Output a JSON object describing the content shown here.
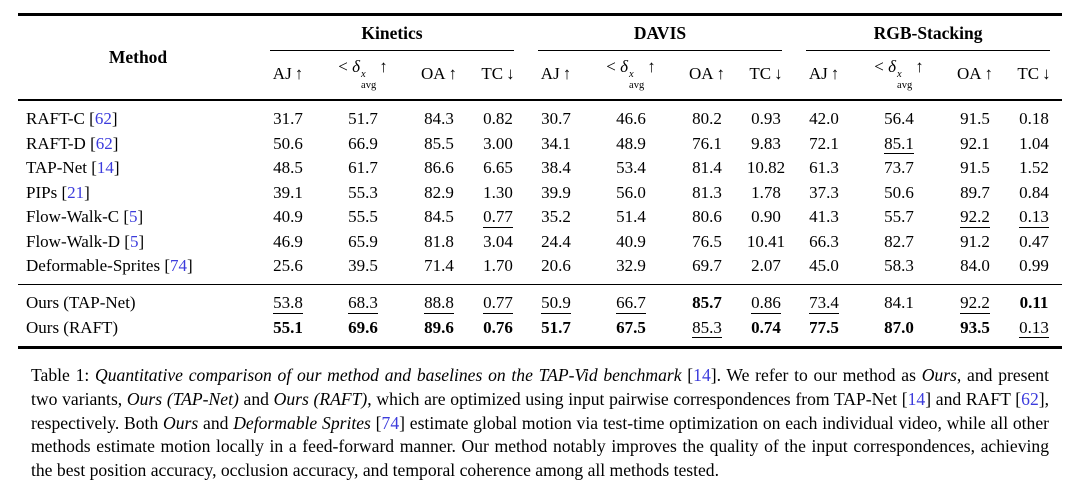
{
  "colors": {
    "citation": "#3b3bdc",
    "rule": "#000000",
    "background": "#ffffff"
  },
  "table": {
    "method_header": "Method",
    "groups": [
      {
        "label": "Kinetics"
      },
      {
        "label": "DAVIS"
      },
      {
        "label": "RGB-Stacking"
      }
    ],
    "metric_headers": [
      {
        "kind": "plain",
        "label": "AJ",
        "arrow": "↑"
      },
      {
        "kind": "delta",
        "prefix": "<",
        "symbol": "δ",
        "sup": "x",
        "sub": "avg",
        "arrow": "↑"
      },
      {
        "kind": "plain",
        "label": "OA",
        "arrow": "↑"
      },
      {
        "kind": "plain",
        "label": "TC",
        "arrow": "↓"
      }
    ],
    "rows": [
      {
        "method": "RAFT-C",
        "cite": "62",
        "cells": [
          [
            "31.7",
            "p"
          ],
          [
            "51.7",
            "p"
          ],
          [
            "84.3",
            "p"
          ],
          [
            "0.82",
            "p"
          ],
          [
            "30.7",
            "p"
          ],
          [
            "46.6",
            "p"
          ],
          [
            "80.2",
            "p"
          ],
          [
            "0.93",
            "p"
          ],
          [
            "42.0",
            "p"
          ],
          [
            "56.4",
            "p"
          ],
          [
            "91.5",
            "p"
          ],
          [
            "0.18",
            "p"
          ]
        ]
      },
      {
        "method": "RAFT-D",
        "cite": "62",
        "cells": [
          [
            "50.6",
            "p"
          ],
          [
            "66.9",
            "p"
          ],
          [
            "85.5",
            "p"
          ],
          [
            "3.00",
            "p"
          ],
          [
            "34.1",
            "p"
          ],
          [
            "48.9",
            "p"
          ],
          [
            "76.1",
            "p"
          ],
          [
            "9.83",
            "p"
          ],
          [
            "72.1",
            "p"
          ],
          [
            "85.1",
            "u"
          ],
          [
            "92.1",
            "p"
          ],
          [
            "1.04",
            "p"
          ]
        ]
      },
      {
        "method": "TAP-Net",
        "cite": "14",
        "cells": [
          [
            "48.5",
            "p"
          ],
          [
            "61.7",
            "p"
          ],
          [
            "86.6",
            "p"
          ],
          [
            "6.65",
            "p"
          ],
          [
            "38.4",
            "p"
          ],
          [
            "53.4",
            "p"
          ],
          [
            "81.4",
            "p"
          ],
          [
            "10.82",
            "p"
          ],
          [
            "61.3",
            "p"
          ],
          [
            "73.7",
            "p"
          ],
          [
            "91.5",
            "p"
          ],
          [
            "1.52",
            "p"
          ]
        ]
      },
      {
        "method": "PIPs",
        "cite": "21",
        "cells": [
          [
            "39.1",
            "p"
          ],
          [
            "55.3",
            "p"
          ],
          [
            "82.9",
            "p"
          ],
          [
            "1.30",
            "p"
          ],
          [
            "39.9",
            "p"
          ],
          [
            "56.0",
            "p"
          ],
          [
            "81.3",
            "p"
          ],
          [
            "1.78",
            "p"
          ],
          [
            "37.3",
            "p"
          ],
          [
            "50.6",
            "p"
          ],
          [
            "89.7",
            "p"
          ],
          [
            "0.84",
            "p"
          ]
        ]
      },
      {
        "method": "Flow-Walk-C",
        "cite": "5",
        "cells": [
          [
            "40.9",
            "p"
          ],
          [
            "55.5",
            "p"
          ],
          [
            "84.5",
            "p"
          ],
          [
            "0.77",
            "u"
          ],
          [
            "35.2",
            "p"
          ],
          [
            "51.4",
            "p"
          ],
          [
            "80.6",
            "p"
          ],
          [
            "0.90",
            "p"
          ],
          [
            "41.3",
            "p"
          ],
          [
            "55.7",
            "p"
          ],
          [
            "92.2",
            "u"
          ],
          [
            "0.13",
            "u"
          ]
        ]
      },
      {
        "method": "Flow-Walk-D",
        "cite": "5",
        "cells": [
          [
            "46.9",
            "p"
          ],
          [
            "65.9",
            "p"
          ],
          [
            "81.8",
            "p"
          ],
          [
            "3.04",
            "p"
          ],
          [
            "24.4",
            "p"
          ],
          [
            "40.9",
            "p"
          ],
          [
            "76.5",
            "p"
          ],
          [
            "10.41",
            "p"
          ],
          [
            "66.3",
            "p"
          ],
          [
            "82.7",
            "p"
          ],
          [
            "91.2",
            "p"
          ],
          [
            "0.47",
            "p"
          ]
        ]
      },
      {
        "method": "Deformable-Sprites",
        "cite": "74",
        "cells": [
          [
            "25.6",
            "p"
          ],
          [
            "39.5",
            "p"
          ],
          [
            "71.4",
            "p"
          ],
          [
            "1.70",
            "p"
          ],
          [
            "20.6",
            "p"
          ],
          [
            "32.9",
            "p"
          ],
          [
            "69.7",
            "p"
          ],
          [
            "2.07",
            "p"
          ],
          [
            "45.0",
            "p"
          ],
          [
            "58.3",
            "p"
          ],
          [
            "84.0",
            "p"
          ],
          [
            "0.99",
            "p"
          ]
        ]
      }
    ],
    "ours_rows": [
      {
        "method": "Ours (TAP-Net)",
        "cite": "",
        "cells": [
          [
            "53.8",
            "u"
          ],
          [
            "68.3",
            "u"
          ],
          [
            "88.8",
            "u"
          ],
          [
            "0.77",
            "u"
          ],
          [
            "50.9",
            "u"
          ],
          [
            "66.7",
            "u"
          ],
          [
            "85.7",
            "b"
          ],
          [
            "0.86",
            "u"
          ],
          [
            "73.4",
            "u"
          ],
          [
            "84.1",
            "p"
          ],
          [
            "92.2",
            "u"
          ],
          [
            "0.11",
            "b"
          ]
        ]
      },
      {
        "method": "Ours (RAFT)",
        "cite": "",
        "cells": [
          [
            "55.1",
            "b"
          ],
          [
            "69.6",
            "b"
          ],
          [
            "89.6",
            "b"
          ],
          [
            "0.76",
            "b"
          ],
          [
            "51.7",
            "b"
          ],
          [
            "67.5",
            "b"
          ],
          [
            "85.3",
            "u"
          ],
          [
            "0.74",
            "b"
          ],
          [
            "77.5",
            "b"
          ],
          [
            "87.0",
            "b"
          ],
          [
            "93.5",
            "b"
          ],
          [
            "0.13",
            "u"
          ]
        ]
      }
    ]
  },
  "caption": {
    "segments": [
      {
        "t": "Table 1: ",
        "style": "plain"
      },
      {
        "t": "Quantitative comparison of our method and baselines on the TAP-Vid benchmark",
        "style": "italic"
      },
      {
        "t": " [",
        "style": "plain"
      },
      {
        "t": "14",
        "style": "cite"
      },
      {
        "t": "]. We refer to our method as ",
        "style": "plain"
      },
      {
        "t": "Ours",
        "style": "italic"
      },
      {
        "t": ", and present two variants, ",
        "style": "plain"
      },
      {
        "t": "Ours (TAP-Net)",
        "style": "italic"
      },
      {
        "t": " and ",
        "style": "plain"
      },
      {
        "t": "Ours (RAFT)",
        "style": "italic"
      },
      {
        "t": ", which are optimized using input pairwise correspondences from TAP-Net [",
        "style": "plain"
      },
      {
        "t": "14",
        "style": "cite"
      },
      {
        "t": "] and RAFT [",
        "style": "plain"
      },
      {
        "t": "62",
        "style": "cite"
      },
      {
        "t": "], respectively. Both ",
        "style": "plain"
      },
      {
        "t": "Ours",
        "style": "italic"
      },
      {
        "t": " and ",
        "style": "plain"
      },
      {
        "t": "Deformable Sprites",
        "style": "italic"
      },
      {
        "t": " [",
        "style": "plain"
      },
      {
        "t": "74",
        "style": "cite"
      },
      {
        "t": "] estimate global motion via test-time optimization on each individual video, while all other methods estimate motion locally in a feed-forward manner. Our method notably improves the quality of the input correspondences, achieving the best position accuracy, occlusion accuracy, and temporal coherence among all methods tested.",
        "style": "plain"
      }
    ]
  }
}
